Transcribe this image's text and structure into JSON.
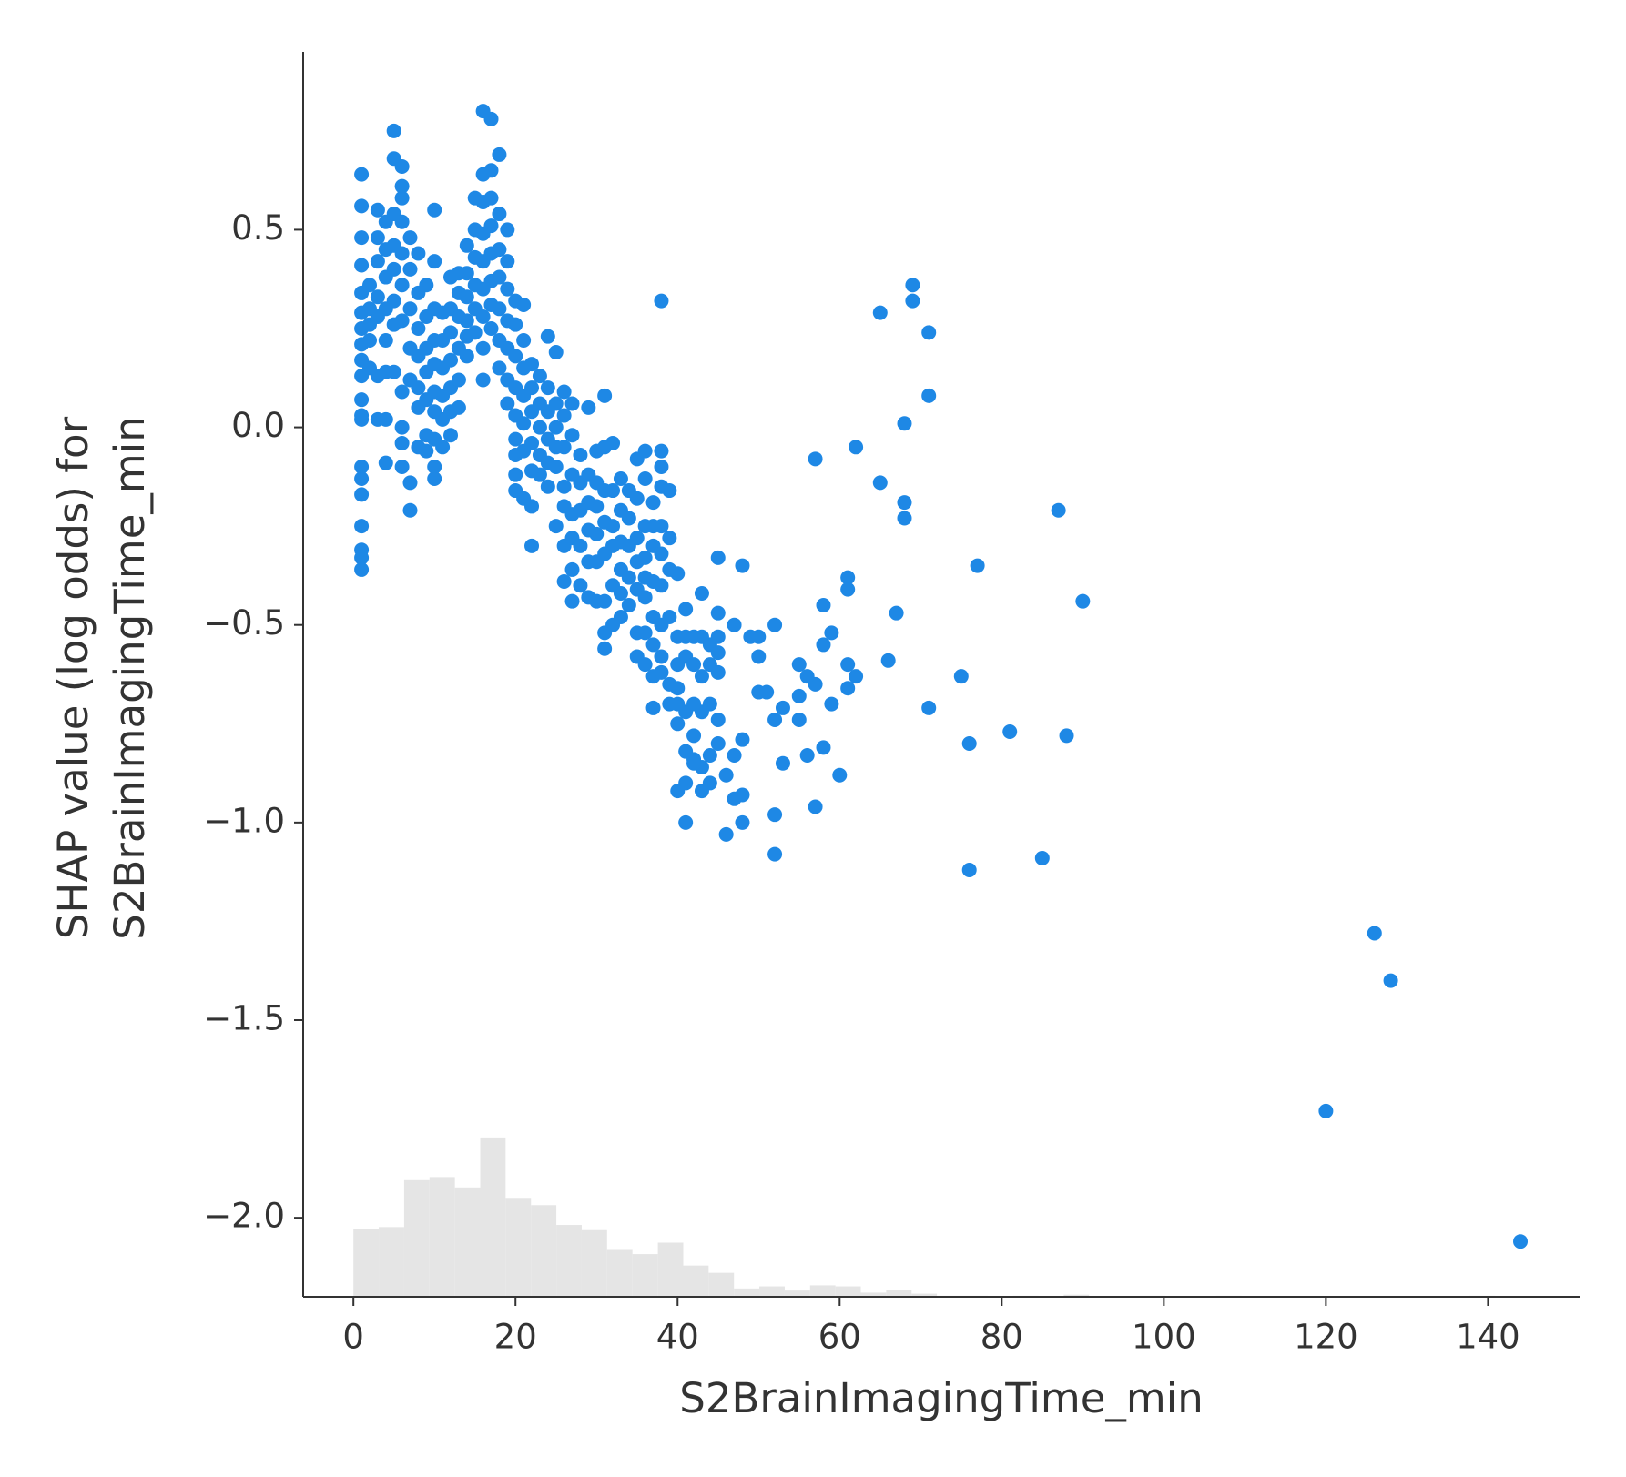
{
  "chart_data": {
    "type": "scatter",
    "xlabel": "S2BrainImagingTime_min",
    "ylabel": [
      "SHAP value (log odds) for",
      "S2BrainImagingTime_min"
    ],
    "xlim": [
      -6.2,
      151.3
    ],
    "ylim": [
      -2.2,
      0.95
    ],
    "xticks": [
      0,
      20,
      40,
      60,
      80,
      100,
      120,
      140
    ],
    "yticks": [
      {
        "value": -2.0,
        "label": "−2.0"
      },
      {
        "value": -1.5,
        "label": "−1.5"
      },
      {
        "value": -1.0,
        "label": "−1.0"
      },
      {
        "value": -0.5,
        "label": "−0.5"
      },
      {
        "value": 0,
        "label": "0.0"
      },
      0.5
    ],
    "color": "#1e88e5",
    "histogram": {
      "color": "#e5e5e5",
      "bins": [
        0,
        3.13,
        6.26,
        9.39,
        12.52,
        15.65,
        18.78,
        21.91,
        25.04,
        28.17,
        31.3,
        34.43,
        37.57,
        40.7,
        43.83,
        46.96,
        50.09,
        53.22,
        56.35,
        59.48,
        62.61,
        65.74,
        68.87,
        72,
        75.13,
        78.26,
        81.39,
        84.52,
        87.65,
        90.78,
        93.91,
        97.04,
        100.17,
        103.3,
        106.43,
        109.57,
        112.7,
        115.83,
        118.96,
        122.09,
        125.22,
        128.35,
        131.48,
        134.61,
        137.74,
        140.87,
        144
      ],
      "counts": [
        65,
        67,
        112,
        115,
        105,
        153,
        95,
        88,
        69,
        64,
        45,
        41,
        52,
        30,
        23,
        8,
        10,
        6,
        11,
        10,
        4,
        7,
        3,
        1,
        1,
        0,
        1,
        0,
        2,
        0,
        0,
        1,
        0,
        0,
        1,
        0,
        0,
        0,
        0,
        0,
        0,
        0,
        0,
        0,
        1,
        0
      ]
    },
    "x": [
      1,
      1,
      1,
      1,
      1,
      1,
      1,
      1,
      1,
      1,
      1,
      1,
      1,
      1,
      1,
      1,
      1,
      1,
      1,
      1,
      2,
      2,
      2,
      2,
      2,
      3,
      3,
      3,
      3,
      3,
      3,
      3,
      4,
      4,
      4,
      4,
      4,
      4,
      4,
      4,
      5,
      5,
      5,
      5,
      5,
      5,
      5,
      5,
      6,
      6,
      6,
      6,
      6,
      6,
      6,
      6,
      6,
      6,
      6,
      7,
      7,
      7,
      7,
      7,
      7,
      7,
      8,
      8,
      8,
      8,
      8,
      8,
      8,
      9,
      9,
      9,
      9,
      9,
      9,
      9,
      10,
      10,
      10,
      10,
      10,
      10,
      10,
      10,
      10,
      10,
      11,
      11,
      11,
      11,
      11,
      11,
      12,
      12,
      12,
      12,
      12,
      12,
      12,
      13,
      13,
      13,
      13,
      13,
      13,
      14,
      14,
      14,
      14,
      14,
      14,
      15,
      15,
      15,
      15,
      15,
      15,
      16,
      16,
      16,
      16,
      16,
      16,
      16,
      16,
      16,
      17,
      17,
      17,
      17,
      17,
      17,
      17,
      17,
      18,
      18,
      18,
      18,
      18,
      18,
      18,
      19,
      19,
      19,
      19,
      19,
      19,
      19,
      20,
      20,
      20,
      20,
      20,
      20,
      20,
      20,
      20,
      21,
      21,
      21,
      21,
      21,
      21,
      21,
      22,
      22,
      22,
      22,
      22,
      22,
      22,
      23,
      23,
      23,
      23,
      23,
      24,
      24,
      24,
      24,
      24,
      24,
      25,
      25,
      25,
      25,
      25,
      25,
      26,
      26,
      26,
      26,
      26,
      26,
      26,
      27,
      27,
      27,
      27,
      27,
      27,
      27,
      28,
      28,
      28,
      28,
      28,
      29,
      29,
      29,
      29,
      29,
      29,
      30,
      30,
      30,
      30,
      30,
      30,
      31,
      31,
      31,
      31,
      31,
      31,
      31,
      31,
      32,
      32,
      32,
      32,
      32,
      32,
      33,
      33,
      33,
      33,
      33,
      33,
      34,
      34,
      34,
      34,
      34,
      35,
      35,
      35,
      35,
      35,
      35,
      35,
      36,
      36,
      36,
      36,
      36,
      36,
      36,
      36,
      37,
      37,
      37,
      37,
      37,
      37,
      37,
      37,
      38,
      38,
      38,
      38,
      38,
      38,
      38,
      38,
      38,
      39,
      39,
      39,
      39,
      39,
      39,
      40,
      40,
      40,
      40,
      40,
      40,
      40,
      41,
      41,
      41,
      41,
      41,
      41,
      42,
      42,
      42,
      42,
      42,
      43,
      43,
      43,
      43,
      43,
      44,
      44,
      44,
      44,
      45,
      45,
      45,
      45,
      38,
      65,
      69,
      69,
      71,
      71,
      68,
      62,
      57,
      65,
      68,
      68,
      87,
      77,
      90,
      67,
      66,
      75,
      71,
      76,
      81,
      88,
      76,
      85,
      126,
      128,
      120,
      144,
      52,
      46,
      41,
      48,
      52,
      57,
      60,
      58,
      56,
      53,
      61,
      62,
      61,
      59,
      58,
      61,
      61,
      59,
      58,
      57,
      56,
      55,
      55,
      55,
      52,
      53,
      51,
      50,
      50,
      49,
      50,
      52,
      48,
      45,
      45,
      47,
      48,
      47,
      46,
      47,
      48,
      45,
      44,
      43,
      42
    ],
    "values": [
      0.64,
      0.56,
      0.48,
      0.41,
      0.34,
      0.29,
      0.25,
      0.21,
      0.17,
      0.13,
      0.07,
      0.03,
      0.02,
      -0.1,
      -0.13,
      -0.17,
      -0.25,
      -0.31,
      -0.33,
      -0.36,
      0.36,
      0.3,
      0.26,
      0.22,
      0.15,
      0.55,
      0.48,
      0.42,
      0.33,
      0.28,
      0.13,
      0.02,
      0.52,
      0.45,
      0.38,
      0.3,
      0.22,
      0.14,
      0.02,
      -0.09,
      0.75,
      0.68,
      0.54,
      0.46,
      0.4,
      0.32,
      0.26,
      0.14,
      0.66,
      0.61,
      0.58,
      0.52,
      0.44,
      0.36,
      0.27,
      0.09,
      0.0,
      -0.04,
      -0.1,
      0.48,
      0.4,
      0.3,
      0.2,
      0.12,
      -0.14,
      -0.21,
      0.44,
      0.34,
      0.25,
      0.18,
      0.1,
      0.05,
      -0.05,
      0.36,
      0.28,
      0.2,
      0.14,
      0.07,
      -0.02,
      -0.06,
      0.55,
      0.42,
      0.3,
      0.22,
      0.16,
      0.09,
      0.04,
      -0.03,
      -0.1,
      -0.13,
      0.29,
      0.22,
      0.15,
      0.08,
      0.02,
      -0.05,
      0.38,
      0.3,
      0.24,
      0.17,
      0.1,
      0.04,
      -0.02,
      0.39,
      0.34,
      0.28,
      0.2,
      0.12,
      0.05,
      0.46,
      0.39,
      0.33,
      0.27,
      0.23,
      0.18,
      0.58,
      0.5,
      0.43,
      0.36,
      0.3,
      0.24,
      0.8,
      0.64,
      0.57,
      0.49,
      0.42,
      0.35,
      0.28,
      0.2,
      0.12,
      0.78,
      0.65,
      0.58,
      0.51,
      0.44,
      0.37,
      0.31,
      0.25,
      0.69,
      0.54,
      0.45,
      0.38,
      0.3,
      0.22,
      0.15,
      0.5,
      0.42,
      0.35,
      0.27,
      0.2,
      0.12,
      0.06,
      0.32,
      0.26,
      0.18,
      0.1,
      0.03,
      -0.03,
      -0.07,
      -0.12,
      -0.16,
      0.31,
      0.22,
      0.15,
      0.08,
      0.01,
      -0.06,
      -0.18,
      0.16,
      0.1,
      0.04,
      -0.04,
      -0.11,
      -0.2,
      -0.3,
      0.13,
      0.06,
      0.0,
      -0.07,
      -0.12,
      0.23,
      0.1,
      0.04,
      -0.03,
      -0.09,
      -0.15,
      0.19,
      0.06,
      0.0,
      -0.05,
      -0.1,
      -0.25,
      0.09,
      0.03,
      -0.05,
      -0.15,
      -0.2,
      -0.3,
      -0.39,
      0.06,
      -0.02,
      -0.12,
      -0.22,
      -0.28,
      -0.36,
      -0.44,
      -0.07,
      -0.14,
      -0.21,
      -0.3,
      -0.4,
      0.05,
      -0.12,
      -0.19,
      -0.26,
      -0.34,
      -0.43,
      -0.06,
      -0.14,
      -0.2,
      -0.27,
      -0.34,
      -0.44,
      0.08,
      -0.05,
      -0.16,
      -0.24,
      -0.32,
      -0.44,
      -0.52,
      -0.56,
      -0.04,
      -0.16,
      -0.25,
      -0.3,
      -0.4,
      -0.5,
      -0.13,
      -0.21,
      -0.29,
      -0.36,
      -0.42,
      -0.48,
      -0.16,
      -0.23,
      -0.3,
      -0.38,
      -0.45,
      -0.08,
      -0.18,
      -0.28,
      -0.34,
      -0.41,
      -0.52,
      -0.58,
      -0.06,
      -0.13,
      -0.25,
      -0.33,
      -0.38,
      -0.43,
      -0.52,
      -0.6,
      -0.19,
      -0.25,
      -0.3,
      -0.39,
      -0.48,
      -0.55,
      -0.63,
      -0.71,
      -0.06,
      -0.1,
      -0.15,
      -0.25,
      -0.32,
      -0.4,
      -0.5,
      -0.58,
      -0.62,
      -0.16,
      -0.28,
      -0.36,
      -0.48,
      -0.65,
      -0.7,
      -0.37,
      -0.53,
      -0.6,
      -0.66,
      -0.7,
      -0.75,
      -0.92,
      -0.46,
      -0.53,
      -0.58,
      -0.72,
      -0.82,
      -0.9,
      -0.53,
      -0.6,
      -0.7,
      -0.78,
      -0.84,
      -0.42,
      -0.53,
      -0.63,
      -0.72,
      -0.86,
      -0.55,
      -0.6,
      -0.7,
      -0.83,
      -0.53,
      -0.57,
      -0.62,
      -0.8,
      0.32,
      0.29,
      0.36,
      0.32,
      0.24,
      0.08,
      0.01,
      -0.05,
      -0.08,
      -0.14,
      -0.19,
      -0.23,
      -0.21,
      -0.35,
      -0.44,
      -0.47,
      -0.59,
      -0.63,
      -0.71,
      -0.8,
      -0.77,
      -0.78,
      -1.12,
      -1.09,
      -1.28,
      -1.4,
      -1.73,
      -2.06,
      -1.08,
      -1.03,
      -1.0,
      -1.0,
      -0.98,
      -0.96,
      -0.88,
      -0.81,
      -0.83,
      -0.85,
      -0.6,
      -0.63,
      -0.66,
      -0.7,
      -0.45,
      -0.41,
      -0.38,
      -0.52,
      -0.55,
      -0.65,
      -0.63,
      -0.6,
      -0.68,
      -0.74,
      -0.74,
      -0.71,
      -0.67,
      -0.67,
      -0.58,
      -0.53,
      -0.53,
      -0.5,
      -0.35,
      -0.33,
      -0.47,
      -0.5,
      -0.79,
      -0.83,
      -0.88,
      -0.94,
      -0.93,
      -0.74,
      -0.9,
      -0.92,
      -0.85
    ]
  }
}
